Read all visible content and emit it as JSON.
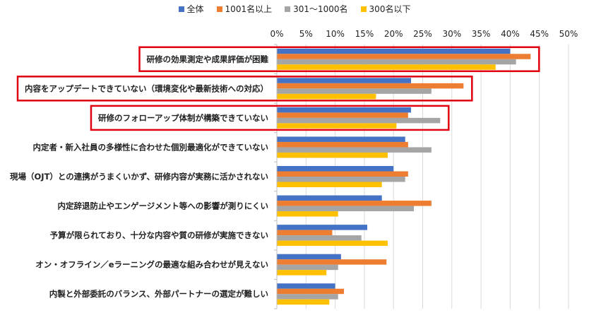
{
  "chart_data": {
    "type": "bar",
    "orientation": "horizontal",
    "categories": [
      "研修の効果測定や成果評価が困難",
      "内容をアップデートできていない（環境変化や最新技術への対応）",
      "研修のフォローアップ体制が構築できていない",
      "内定者・新入社員の多様性に合わせた個別最適化ができていない",
      "現場（OJT）との連携がうまくいかず、研修内容が実務に活かされない",
      "内定辞退防止やエンゲージメント等への影響が測りにくい",
      "予算が限られており、十分な内容や質の研修が実施できない",
      "オン・オフライン／eラーニングの最適な組み合わせが見えない",
      "内製と外部委託のバランス、外部パートナーの選定が難しい"
    ],
    "series": [
      {
        "name": "全体",
        "color": "#4472C4",
        "values": [
          40,
          23,
          23,
          22,
          20,
          18,
          15.5,
          11,
          10
        ]
      },
      {
        "name": "1001名以上",
        "color": "#ED7D31",
        "values": [
          43.5,
          32,
          22.5,
          22.5,
          22.5,
          26.5,
          9.5,
          18.8,
          11.5
        ]
      },
      {
        "name": "301〜1000名",
        "color": "#A5A5A5",
        "values": [
          41,
          26.5,
          28,
          26.5,
          22,
          23.5,
          14.5,
          10.5,
          10.5
        ]
      },
      {
        "name": "300名以下",
        "color": "#FFC000",
        "values": [
          37.5,
          17,
          20.5,
          19,
          18,
          10.5,
          19,
          8.5,
          9
        ]
      }
    ],
    "highlighted_categories": [
      0,
      1,
      2
    ],
    "xlim": [
      0,
      50
    ],
    "tick_step": 5,
    "tick_labels": [
      "0%",
      "5%",
      "10%",
      "15%",
      "20%",
      "25%",
      "30%",
      "35%",
      "40%",
      "45%",
      "50%"
    ],
    "grid": true,
    "legend_position": "top",
    "highlight_color": "#E0000F"
  }
}
